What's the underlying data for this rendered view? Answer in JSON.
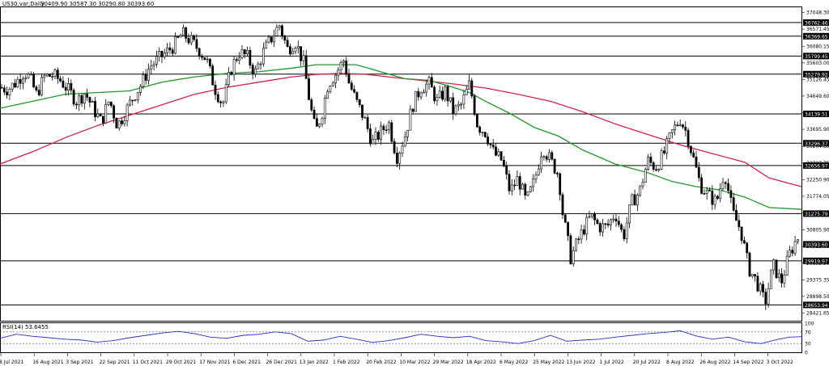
{
  "header": {
    "symbol": "US30.var,Daily",
    "ohlc": "30409.90 30587.30 30290.80 30393.60"
  },
  "chart_data": {
    "type": "candlestick",
    "instrument": "US30.var,Daily",
    "price_axis": {
      "ylim": [
        28200,
        37200
      ],
      "ticks": [
        37048.3,
        36571.45,
        36080.15,
        35603.0,
        35126.45,
        34649.6,
        34172.75,
        33695.9,
        33204.6,
        32727.75,
        32250.9,
        31774.05,
        31297.2,
        30805.9,
        30329.05,
        29852.2,
        29375.35,
        28898.5,
        28421.65
      ]
    },
    "levels": [
      36762.46,
      36369.65,
      35799.45,
      35279.92,
      34139.51,
      33296.37,
      32656.97,
      31275.79,
      29919.97,
      28653.94
    ],
    "last_price": 30393.6,
    "x_axis_labels": [
      "8 Jul 2021",
      "16 Aug 2021",
      "3 Sep 2021",
      "22 Sep 2021",
      "11 Oct 2021",
      "29 Oct 2021",
      "17 Nov 2021",
      "6 Dec 2021",
      "26 Dec 2021",
      "13 Jan 2022",
      "1 Feb 2022",
      "20 Feb 2022",
      "10 Mar 2022",
      "29 Mar 2022",
      "18 Apr 2022",
      "6 May 2022",
      "25 May 2022",
      "13 Jun 2022",
      "1 Jul 2022",
      "20 Jul 2022",
      "8 Aug 2022",
      "26 Aug 2022",
      "14 Sep 2022",
      "3 Oct 2022"
    ],
    "close_path": [
      [
        0,
        34900
      ],
      [
        10,
        34850
      ],
      [
        20,
        35050
      ],
      [
        30,
        35350
      ],
      [
        37,
        35150
      ],
      [
        45,
        34700
      ],
      [
        55,
        35200
      ],
      [
        65,
        35250
      ],
      [
        75,
        35100
      ],
      [
        85,
        34800
      ],
      [
        95,
        34500
      ],
      [
        105,
        34750
      ],
      [
        115,
        34300
      ],
      [
        125,
        33900
      ],
      [
        135,
        34550
      ],
      [
        145,
        33800
      ],
      [
        155,
        34200
      ],
      [
        165,
        34650
      ],
      [
        175,
        35000
      ],
      [
        185,
        35500
      ],
      [
        200,
        35800
      ],
      [
        215,
        36100
      ],
      [
        225,
        36450
      ],
      [
        235,
        36250
      ],
      [
        245,
        36000
      ],
      [
        255,
        35700
      ],
      [
        265,
        34900
      ],
      [
        275,
        34400
      ],
      [
        285,
        35400
      ],
      [
        295,
        35900
      ],
      [
        305,
        35800
      ],
      [
        315,
        35300
      ],
      [
        325,
        35900
      ],
      [
        335,
        36300
      ],
      [
        345,
        36700
      ],
      [
        355,
        36000
      ],
      [
        365,
        36200
      ],
      [
        375,
        35600
      ],
      [
        383,
        34400
      ],
      [
        390,
        33600
      ],
      [
        398,
        34200
      ],
      [
        405,
        35000
      ],
      [
        415,
        35300
      ],
      [
        425,
        35700
      ],
      [
        430,
        35100
      ],
      [
        440,
        34500
      ],
      [
        450,
        34000
      ],
      [
        460,
        33300
      ],
      [
        470,
        33600
      ],
      [
        480,
        33900
      ],
      [
        490,
        32900
      ],
      [
        500,
        33500
      ],
      [
        510,
        34400
      ],
      [
        520,
        34900
      ],
      [
        530,
        35000
      ],
      [
        540,
        34500
      ],
      [
        550,
        34800
      ],
      [
        560,
        34200
      ],
      [
        570,
        34400
      ],
      [
        580,
        35000
      ],
      [
        590,
        33800
      ],
      [
        600,
        33600
      ],
      [
        610,
        33000
      ],
      [
        620,
        32800
      ],
      [
        630,
        31900
      ],
      [
        640,
        32300
      ],
      [
        650,
        31600
      ],
      [
        660,
        32200
      ],
      [
        670,
        33200
      ],
      [
        680,
        32800
      ],
      [
        690,
        32400
      ],
      [
        695,
        31300
      ],
      [
        705,
        30000
      ],
      [
        712,
        30400
      ],
      [
        720,
        30800
      ],
      [
        730,
        31200
      ],
      [
        740,
        30900
      ],
      [
        750,
        30900
      ],
      [
        760,
        31300
      ],
      [
        770,
        30600
      ],
      [
        780,
        31600
      ],
      [
        790,
        31900
      ],
      [
        800,
        32800
      ],
      [
        810,
        32600
      ],
      [
        820,
        33000
      ],
      [
        830,
        33600
      ],
      [
        840,
        34000
      ],
      [
        848,
        33600
      ],
      [
        856,
        32900
      ],
      [
        865,
        32100
      ],
      [
        875,
        31800
      ],
      [
        885,
        31600
      ],
      [
        895,
        32500
      ],
      [
        905,
        31300
      ],
      [
        915,
        30800
      ],
      [
        925,
        29700
      ],
      [
        935,
        29300
      ],
      [
        945,
        28700
      ],
      [
        955,
        29800
      ],
      [
        965,
        29300
      ],
      [
        975,
        30100
      ],
      [
        985,
        30600
      ],
      [
        990,
        30400
      ]
    ],
    "ma_green": [
      [
        0,
        34300
      ],
      [
        40,
        34500
      ],
      [
        80,
        34700
      ],
      [
        120,
        34750
      ],
      [
        160,
        34800
      ],
      [
        200,
        35050
      ],
      [
        240,
        35200
      ],
      [
        280,
        35300
      ],
      [
        320,
        35350
      ],
      [
        360,
        35450
      ],
      [
        390,
        35550
      ],
      [
        410,
        35550
      ],
      [
        440,
        35550
      ],
      [
        470,
        35350
      ],
      [
        500,
        35150
      ],
      [
        530,
        35100
      ],
      [
        560,
        34900
      ],
      [
        580,
        34750
      ],
      [
        600,
        34500
      ],
      [
        630,
        34150
      ],
      [
        660,
        33750
      ],
      [
        690,
        33500
      ],
      [
        720,
        33100
      ],
      [
        760,
        32700
      ],
      [
        800,
        32450
      ],
      [
        830,
        32200
      ],
      [
        860,
        32050
      ],
      [
        890,
        31950
      ],
      [
        920,
        31750
      ],
      [
        950,
        31450
      ],
      [
        990,
        31400
      ]
    ],
    "ma_red": [
      [
        0,
        32700
      ],
      [
        40,
        33050
      ],
      [
        80,
        33450
      ],
      [
        120,
        33800
      ],
      [
        160,
        34100
      ],
      [
        200,
        34400
      ],
      [
        240,
        34700
      ],
      [
        280,
        34900
      ],
      [
        320,
        35050
      ],
      [
        360,
        35200
      ],
      [
        390,
        35270
      ],
      [
        420,
        35300
      ],
      [
        450,
        35280
      ],
      [
        480,
        35200
      ],
      [
        520,
        35100
      ],
      [
        560,
        35000
      ],
      [
        600,
        34880
      ],
      [
        640,
        34700
      ],
      [
        680,
        34500
      ],
      [
        720,
        34200
      ],
      [
        760,
        33850
      ],
      [
        800,
        33550
      ],
      [
        840,
        33250
      ],
      [
        880,
        33000
      ],
      [
        920,
        32750
      ],
      [
        950,
        32300
      ],
      [
        990,
        32050
      ]
    ],
    "rsi": {
      "label": "RSI(14) 53.6455",
      "value": 53.6455,
      "ylim": [
        0,
        100
      ],
      "ticks": [
        100,
        70,
        30,
        0
      ],
      "levels": [
        70,
        30
      ],
      "path": [
        [
          0,
          48
        ],
        [
          20,
          62
        ],
        [
          40,
          55
        ],
        [
          60,
          50
        ],
        [
          80,
          45
        ],
        [
          100,
          42
        ],
        [
          120,
          35
        ],
        [
          140,
          40
        ],
        [
          160,
          50
        ],
        [
          180,
          58
        ],
        [
          200,
          66
        ],
        [
          220,
          72
        ],
        [
          240,
          64
        ],
        [
          260,
          52
        ],
        [
          280,
          48
        ],
        [
          300,
          58
        ],
        [
          320,
          62
        ],
        [
          340,
          70
        ],
        [
          360,
          64
        ],
        [
          380,
          38
        ],
        [
          400,
          42
        ],
        [
          420,
          55
        ],
        [
          440,
          45
        ],
        [
          460,
          34
        ],
        [
          480,
          40
        ],
        [
          500,
          50
        ],
        [
          520,
          62
        ],
        [
          540,
          55
        ],
        [
          560,
          50
        ],
        [
          580,
          55
        ],
        [
          600,
          40
        ],
        [
          620,
          36
        ],
        [
          640,
          30
        ],
        [
          660,
          40
        ],
        [
          680,
          58
        ],
        [
          700,
          38
        ],
        [
          720,
          42
        ],
        [
          740,
          45
        ],
        [
          760,
          52
        ],
        [
          780,
          58
        ],
        [
          800,
          64
        ],
        [
          820,
          68
        ],
        [
          840,
          74
        ],
        [
          860,
          56
        ],
        [
          880,
          45
        ],
        [
          900,
          52
        ],
        [
          920,
          36
        ],
        [
          940,
          30
        ],
        [
          960,
          44
        ],
        [
          975,
          52
        ],
        [
          990,
          53.6
        ]
      ]
    }
  }
}
